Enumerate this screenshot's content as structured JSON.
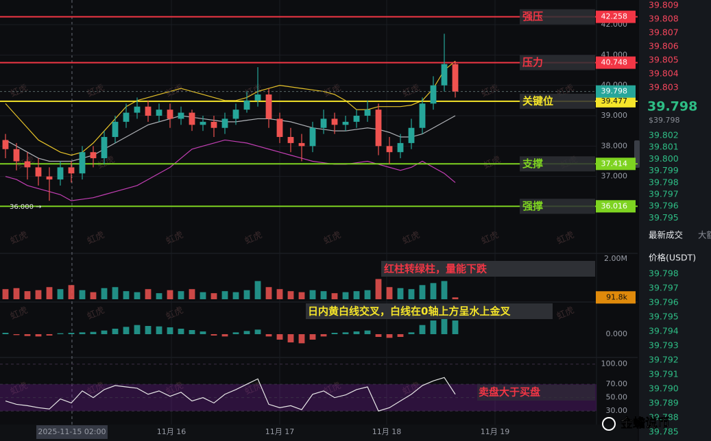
{
  "chart_data": {
    "type": "candlestick",
    "xlim": [
      -0.5,
      53.875
    ],
    "xticks": [
      {
        "value": 6.06,
        "label": "2025-11-15 02:00"
      },
      {
        "value": 15.125,
        "label": "11月 16"
      },
      {
        "value": 25,
        "label": "11月 17"
      },
      {
        "value": 34.75,
        "label": "11月 18"
      },
      {
        "value": 44.625,
        "label": "11月 19"
      }
    ],
    "ylim": [
      34.466,
      42.812
    ],
    "yticks": [
      {
        "value": 42,
        "label": "42.000"
      },
      {
        "value": 41,
        "label": "41.000"
      },
      {
        "value": 40,
        "label": "40.000"
      },
      {
        "value": 39,
        "label": "39.000"
      },
      {
        "value": 38,
        "label": "38.000"
      },
      {
        "value": 37,
        "label": "37.000"
      }
    ],
    "grid": true,
    "up_color": "#26a69a",
    "down_color": "#ef5350",
    "candles": {
      "open": [
        38.2,
        37.9,
        37.5,
        37.3,
        37.0,
        36.9,
        37.3,
        37.1,
        37.8,
        37.6,
        38.3,
        38.8,
        39.1,
        39.3,
        39.0,
        39.2,
        38.9,
        39.1,
        38.7,
        38.8,
        38.6,
        38.9,
        39.2,
        39.5,
        39.7,
        38.9,
        38.3,
        38.1,
        38.0,
        38.6,
        38.9,
        38.7,
        38.8,
        39.0,
        39.2,
        38.0,
        37.8,
        38.1,
        38.6,
        39.4,
        40.0,
        40.7
      ],
      "high": [
        38.4,
        38.1,
        37.8,
        37.6,
        37.3,
        37.5,
        37.5,
        38.0,
        38.0,
        38.5,
        39.0,
        39.4,
        39.6,
        39.5,
        39.4,
        39.4,
        39.3,
        39.2,
        39.0,
        39.0,
        39.1,
        39.4,
        39.8,
        40.6,
        39.9,
        39.1,
        38.6,
        38.4,
        38.8,
        39.2,
        39.1,
        39.0,
        39.2,
        39.5,
        39.4,
        38.3,
        38.4,
        38.9,
        39.6,
        40.3,
        41.7,
        40.8
      ],
      "low": [
        37.6,
        37.2,
        36.9,
        36.7,
        36.2,
        36.7,
        36.8,
        36.9,
        37.3,
        37.4,
        38.1,
        38.6,
        38.9,
        38.8,
        38.8,
        38.6,
        38.7,
        38.5,
        38.5,
        38.3,
        38.4,
        38.7,
        39.1,
        39.3,
        38.6,
        38.1,
        37.8,
        37.5,
        37.8,
        38.4,
        38.4,
        38.5,
        38.6,
        38.8,
        37.7,
        37.4,
        37.6,
        37.9,
        38.4,
        39.2,
        39.8,
        39.6
      ],
      "close": [
        37.9,
        37.5,
        37.3,
        37.0,
        36.9,
        37.3,
        37.1,
        37.8,
        37.6,
        38.3,
        38.8,
        39.1,
        39.3,
        39.0,
        39.2,
        38.9,
        39.1,
        38.7,
        38.8,
        38.6,
        38.9,
        39.2,
        39.5,
        39.7,
        38.9,
        38.3,
        38.1,
        38.0,
        38.6,
        38.9,
        38.7,
        38.8,
        39.0,
        39.2,
        38.0,
        37.8,
        38.1,
        38.6,
        39.4,
        40.0,
        40.7,
        39.8
      ]
    },
    "overlays": [
      {
        "color": "#e6c229",
        "values": [
          39.4,
          39.0,
          38.6,
          38.2,
          38.0,
          37.8,
          37.7,
          37.8,
          38.1,
          38.5,
          38.9,
          39.3,
          39.5,
          39.6,
          39.7,
          39.8,
          39.9,
          39.8,
          39.7,
          39.6,
          39.5,
          39.5,
          39.6,
          39.8,
          39.9,
          40.0,
          39.95,
          39.9,
          39.85,
          39.8,
          39.7,
          39.5,
          39.2,
          39.2,
          39.3,
          39.3,
          39.3,
          39.35,
          39.5,
          39.9,
          40.5,
          40.8
        ]
      },
      {
        "color": "#b0b3b8",
        "values": [
          38.2,
          38.0,
          37.8,
          37.6,
          37.5,
          37.5,
          37.5,
          37.6,
          37.7,
          37.9,
          38.1,
          38.3,
          38.5,
          38.7,
          38.8,
          38.9,
          39.0,
          38.95,
          38.9,
          38.85,
          38.8,
          38.8,
          38.85,
          38.9,
          38.9,
          38.85,
          38.8,
          38.7,
          38.6,
          38.55,
          38.5,
          38.5,
          38.55,
          38.6,
          38.55,
          38.45,
          38.3,
          38.3,
          38.4,
          38.6,
          38.8,
          39.0
        ]
      },
      {
        "color": "#c43fb5",
        "values": [
          37.0,
          36.9,
          36.7,
          36.6,
          36.5,
          36.4,
          36.2,
          36.25,
          36.3,
          36.4,
          36.5,
          36.6,
          36.7,
          36.9,
          37.1,
          37.3,
          37.6,
          37.9,
          38.0,
          38.1,
          38.2,
          38.15,
          38.1,
          38.0,
          37.9,
          37.8,
          37.7,
          37.6,
          37.5,
          37.45,
          37.4,
          37.4,
          37.45,
          37.5,
          37.4,
          37.3,
          37.2,
          37.3,
          37.5,
          37.3,
          37.1,
          36.8
        ]
      }
    ],
    "levels": [
      {
        "name": "强压",
        "value": 42.258,
        "color": "#f23645"
      },
      {
        "name": "压力",
        "value": 40.748,
        "color": "#f23645"
      },
      {
        "name": "关键位",
        "value": 39.477,
        "color": "#f5e52a"
      },
      {
        "name": "支撑",
        "value": 37.414,
        "color": "#7ed321"
      },
      {
        "name": "强撑",
        "value": 36.016,
        "color": "#7ed321"
      }
    ],
    "current_price": 39.798,
    "current_color": "#26a69a",
    "low_marker": {
      "value": 36,
      "label": "36.000 →"
    },
    "volume": {
      "ylim": [
        0,
        2200000
      ],
      "yticks": [
        {
          "value": 2000000,
          "label": "2.00M"
        }
      ],
      "values": [
        500000,
        550000,
        400000,
        450000,
        600000,
        500000,
        700000,
        450000,
        350000,
        550000,
        600000,
        400000,
        350000,
        500000,
        300000,
        450000,
        400000,
        500000,
        350000,
        300000,
        400000,
        350000,
        450000,
        900000,
        600000,
        500000,
        400000,
        350000,
        450000,
        400000,
        300000,
        350000,
        400000,
        450000,
        1000000,
        600000,
        550000,
        500000,
        700000,
        800000,
        900000,
        91800
      ],
      "last": {
        "value": 91800,
        "label": "91.8k"
      }
    },
    "macd": {
      "ylim": [
        -0.6,
        0.6
      ],
      "yticks": [
        {
          "value": 0,
          "label": "0.000"
        }
      ],
      "values": [
        0.03,
        -0.02,
        -0.04,
        -0.05,
        -0.03,
        0.02,
        0.03,
        0.04,
        0.05,
        0.08,
        0.12,
        0.16,
        0.2,
        0.18,
        0.17,
        0.15,
        0.12,
        0.09,
        0.06,
        -0.03,
        -0.05,
        0.04,
        0.07,
        0.1,
        -0.05,
        -0.12,
        -0.18,
        -0.2,
        -0.12,
        -0.05,
        0.03,
        0.04,
        0.06,
        0.08,
        -0.06,
        -0.08,
        -0.06,
        0.04,
        0.2,
        0.3,
        0.35,
        0.3
      ]
    },
    "rsi": {
      "ylim": [
        20,
        112
      ],
      "yticks": [
        {
          "value": 100,
          "label": "100.00"
        },
        {
          "value": 70,
          "label": "70.00"
        },
        {
          "value": 50,
          "label": "50.00"
        },
        {
          "value": 30,
          "label": "30.00"
        }
      ],
      "band": [
        30,
        70
      ],
      "color": "#e8e8e8",
      "values": [
        45,
        40,
        38,
        35,
        33,
        48,
        42,
        60,
        50,
        62,
        68,
        66,
        64,
        55,
        60,
        52,
        58,
        45,
        50,
        42,
        55,
        62,
        70,
        78,
        40,
        35,
        38,
        32,
        55,
        60,
        50,
        54,
        62,
        66,
        30,
        35,
        45,
        55,
        68,
        75,
        80,
        55
      ]
    },
    "annotations": [
      "红柱转绿柱，量能下跌",
      "日内黄白线交叉，白线在0轴上方呈水上金叉",
      "卖盘大于买盘"
    ]
  },
  "order_book": {
    "asks": [
      "39.809",
      "39.808",
      "39.807",
      "39.806",
      "39.805",
      "39.804",
      "39.803"
    ],
    "last_price": "39.798",
    "last_price_usd": "$39.798",
    "bids": [
      "39.802",
      "39.801",
      "39.800",
      "39.799",
      "39.798",
      "39.797",
      "39.796",
      "39.795"
    ]
  },
  "trades": {
    "tabs": [
      "最新成交",
      "大额"
    ],
    "column": "价格(USDT)",
    "prices": [
      "39.798",
      "39.797",
      "39.796",
      "39.795",
      "39.794",
      "39.793",
      "39.792",
      "39.791",
      "39.790",
      "39.789",
      "39.788",
      "39.785"
    ]
  },
  "watermark": "虹虎",
  "footer": "金蟾说币"
}
